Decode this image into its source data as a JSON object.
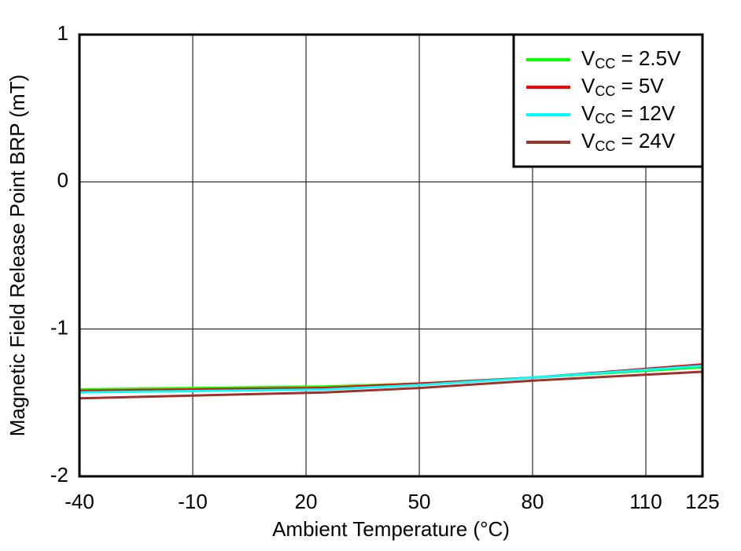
{
  "chart_data": {
    "type": "line",
    "x_label": "Ambient Temperature (°C)",
    "y_label": "Magnetic Field Release Point BRP (mT)",
    "x": [
      -40,
      25,
      50,
      80,
      125
    ],
    "series": [
      {
        "name": "VCC = 2.5V",
        "color": "#00ff00",
        "values": [
          -1.41,
          -1.39,
          -1.37,
          -1.33,
          -1.26
        ]
      },
      {
        "name": "VCC = 5V",
        "color": "#ff0000",
        "values": [
          -1.42,
          -1.4,
          -1.37,
          -1.33,
          -1.24
        ]
      },
      {
        "name": "VCC = 12V",
        "color": "#00ffff",
        "values": [
          -1.43,
          -1.41,
          -1.38,
          -1.33,
          -1.25
        ]
      },
      {
        "name": "VCC = 24V",
        "color": "#a0302a",
        "values": [
          -1.47,
          -1.43,
          -1.4,
          -1.35,
          -1.29
        ]
      }
    ],
    "xlim": [
      -40,
      125
    ],
    "xticks": [
      -40,
      -10,
      20,
      50,
      80,
      110,
      125
    ],
    "ylim": [
      -2,
      1
    ],
    "yticks": [
      -2,
      -1,
      0,
      1
    ],
    "grid": true,
    "legend": "upper right"
  }
}
